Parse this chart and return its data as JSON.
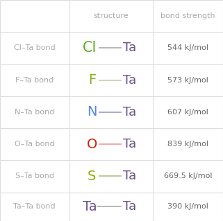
{
  "rows": [
    {
      "label": "Cl–Ta bond",
      "element": "Cl",
      "element_color": "#5aab1e",
      "bond_color": "#aaaaaa",
      "strength": "544 kJ/mol"
    },
    {
      "label": "F–Ta bond",
      "element": "F",
      "element_color": "#8ab020",
      "bond_color": "#ccccaa",
      "strength": "573 kJ/mol"
    },
    {
      "label": "N–Ta bond",
      "element": "N",
      "element_color": "#5588ee",
      "bond_color": "#9999cc",
      "strength": "607 kJ/mol"
    },
    {
      "label": "O–Ta bond",
      "element": "O",
      "element_color": "#cc2200",
      "bond_color": "#ee9999",
      "strength": "839 kJ/mol"
    },
    {
      "label": "S–Ta bond",
      "element": "S",
      "element_color": "#99aa00",
      "bond_color": "#bbbb88",
      "strength": "669.5 kJ/mol"
    },
    {
      "label": "Ta–Ta bond",
      "element": "Ta",
      "element_color": "#6b4f8e",
      "bond_color": "#aaaaaa",
      "strength": "390 kJ/mol"
    }
  ],
  "ta_color": "#6b4f8e",
  "header_col1": "structure",
  "header_col2": "bond strength",
  "label_color": "#aaaaaa",
  "header_color": "#aaaaaa",
  "strength_color": "#666666",
  "grid_color": "#dddddd",
  "bg_color": "#ffffff",
  "fig_width": 3.21,
  "fig_height": 3.19,
  "dpi": 100
}
